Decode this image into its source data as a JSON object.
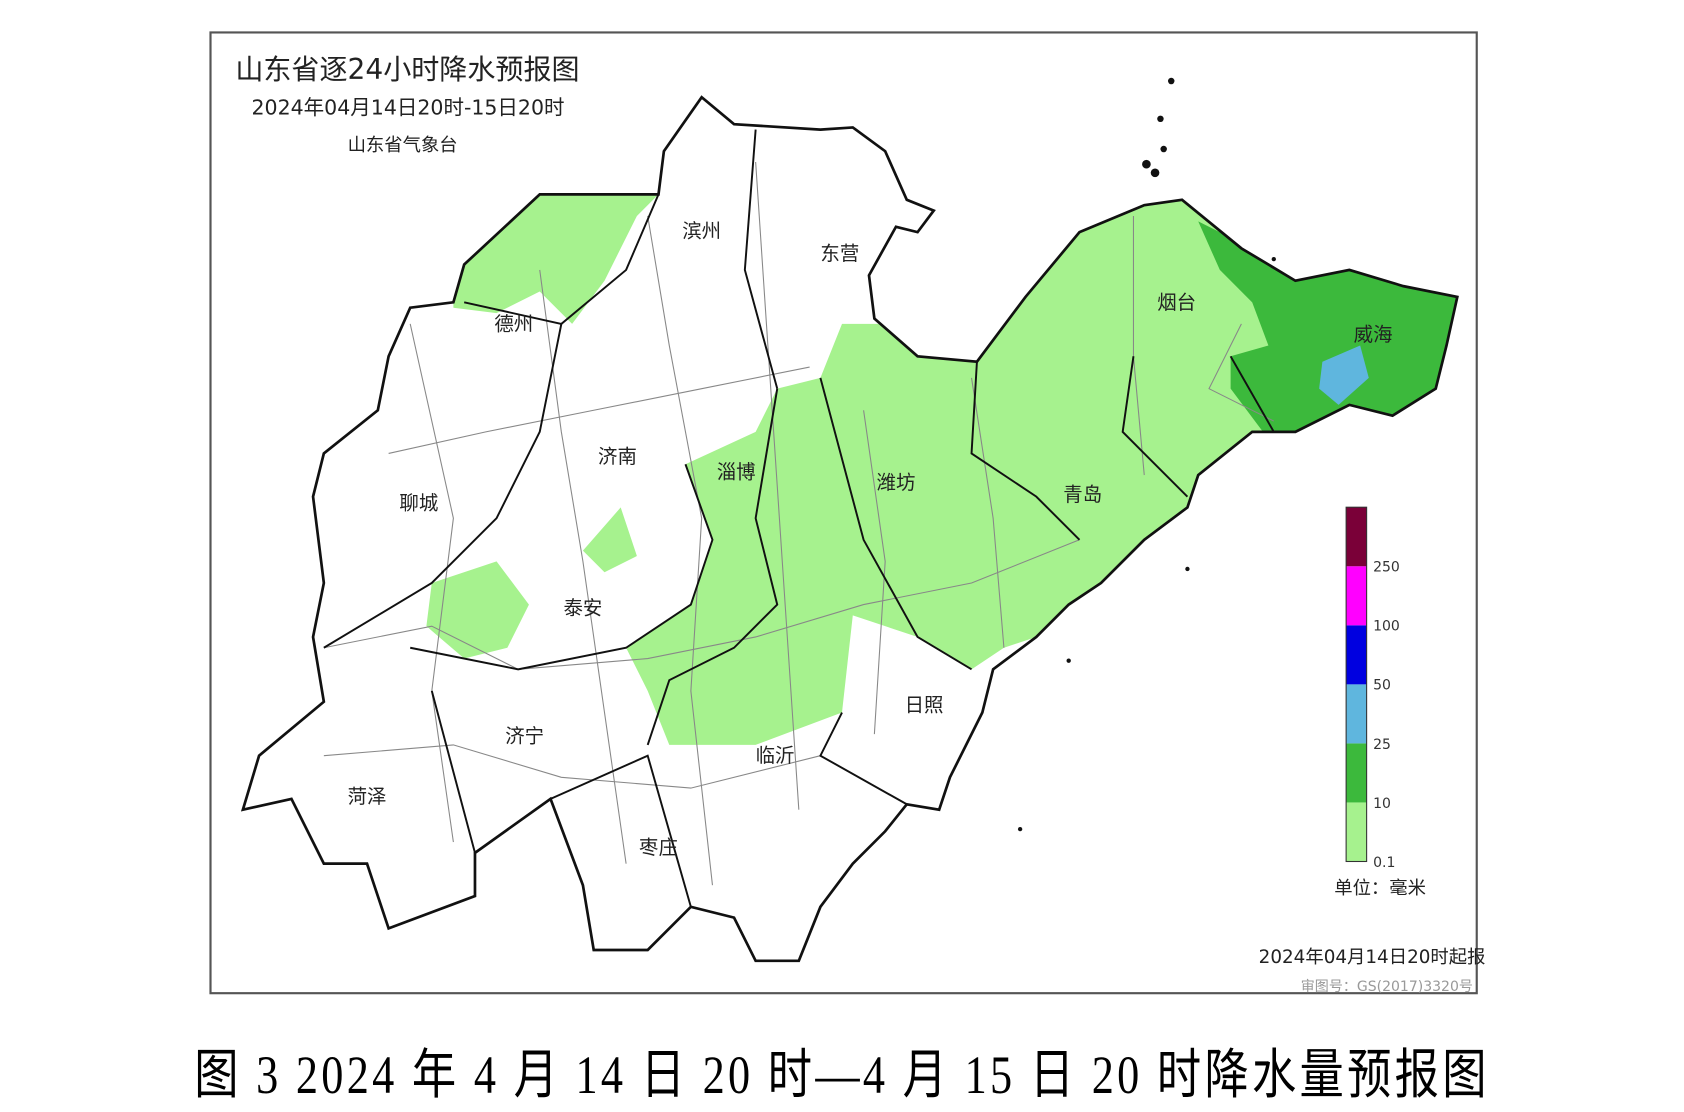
{
  "map": {
    "title": "山东省逐24小时降水预报图",
    "period": "2024年04月14日20时-15日20时",
    "issuer": "山东省气象台",
    "issued_at": "2024年04月14日20时起报",
    "approval_number": "审图号：GS(2017)3320号",
    "cities": [
      "滨州",
      "东营",
      "德州",
      "烟台",
      "威海",
      "济南",
      "淄博",
      "潍坊",
      "聊城",
      "青岛",
      "泰安",
      "日照",
      "济宁",
      "临沂",
      "菏泽",
      "枣庄"
    ],
    "legend": {
      "unit": "单位：毫米",
      "ticks": [
        "0.1",
        "10",
        "25",
        "50",
        "100",
        "250"
      ],
      "colors": [
        "#a6f28e",
        "#3cb93c",
        "#5fb6de",
        "#0000e0",
        "#ff00ff",
        "#7a0038"
      ]
    },
    "region_colors": {
      "light_rain": "#a6f28e",
      "moderate_rain": "#3cb93c",
      "heavy_rain": "#5fb6de"
    }
  },
  "caption": "图 3 2024 年 4 月 14 日 20 时—4 月 15 日 20 时降水量预报图"
}
